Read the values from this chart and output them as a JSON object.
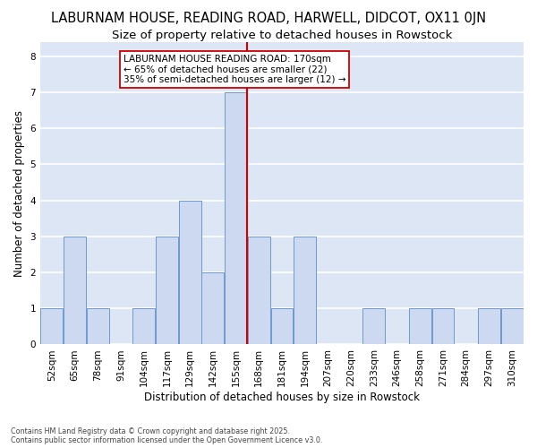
{
  "title": "LABURNAM HOUSE, READING ROAD, HARWELL, DIDCOT, OX11 0JN",
  "subtitle": "Size of property relative to detached houses in Rowstock",
  "xlabel": "Distribution of detached houses by size in Rowstock",
  "ylabel": "Number of detached properties",
  "bins": [
    "52sqm",
    "65sqm",
    "78sqm",
    "91sqm",
    "104sqm",
    "117sqm",
    "129sqm",
    "142sqm",
    "155sqm",
    "168sqm",
    "181sqm",
    "194sqm",
    "207sqm",
    "220sqm",
    "233sqm",
    "246sqm",
    "258sqm",
    "271sqm",
    "284sqm",
    "297sqm",
    "310sqm"
  ],
  "bar_values": [
    1,
    3,
    1,
    0,
    1,
    3,
    4,
    2,
    7,
    3,
    1,
    3,
    0,
    0,
    1,
    0,
    1,
    1,
    0,
    1,
    1
  ],
  "bar_color": "#ccd9f0",
  "bar_edge_color": "#7099cc",
  "red_line_bin_index": 9,
  "annotation_text": "LABURNAM HOUSE READING ROAD: 170sqm\n← 65% of detached houses are smaller (22)\n35% of semi-detached houses are larger (12) →",
  "annotation_box_color": "#ffffff",
  "annotation_box_edge": "#cc0000",
  "red_line_color": "#cc0000",
  "ylim": [
    0,
    8.4
  ],
  "yticks": [
    0,
    1,
    2,
    3,
    4,
    5,
    6,
    7,
    8
  ],
  "plot_bg_color": "#dde6f5",
  "footer_text": "Contains HM Land Registry data © Crown copyright and database right 2025.\nContains public sector information licensed under the Open Government Licence v3.0.",
  "title_fontsize": 10.5,
  "subtitle_fontsize": 9.5,
  "axis_label_fontsize": 8.5,
  "tick_fontsize": 7.5,
  "annotation_fontsize": 7.5
}
